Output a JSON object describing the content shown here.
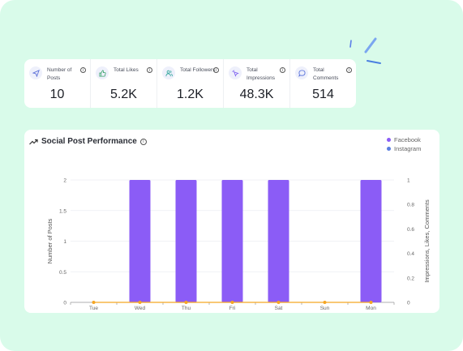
{
  "stats": [
    {
      "label": "Number of Posts",
      "value": "10",
      "icon": "send-icon"
    },
    {
      "label": "Total Likes",
      "value": "5.2K",
      "icon": "thumbs-up-icon"
    },
    {
      "label": "Total Followers",
      "value": "1.2K",
      "icon": "users-icon"
    },
    {
      "label": "Total Impressions",
      "value": "48.3K",
      "icon": "pointer-click-icon"
    },
    {
      "label": "Total Comments",
      "value": "514",
      "icon": "chat-bubble-icon"
    }
  ],
  "card": {
    "title": "Social Post Performance",
    "title_icon": "trending-up-icon",
    "info_glyph": "i"
  },
  "stat_info_glyph": "i",
  "chart_data": {
    "type": "bar",
    "categories": [
      "Tue",
      "Wed",
      "Thu",
      "Fri",
      "Sat",
      "Sun",
      "Mon"
    ],
    "series": [
      {
        "name": "Facebook",
        "type": "bar",
        "axis": "left",
        "color": "#8b5cf6",
        "values": [
          0,
          2,
          2,
          2,
          2,
          0,
          2
        ]
      },
      {
        "name": "Instagram",
        "type": "line",
        "axis": "right",
        "color": "#f5a623",
        "values": [
          0,
          0,
          0,
          0,
          0,
          0,
          0
        ]
      }
    ],
    "legend": [
      {
        "name": "Facebook",
        "color": "#8b5cf6"
      },
      {
        "name": "Instagram",
        "color": "#5b7fe0"
      }
    ],
    "ylabel": "Number of Posts",
    "y2label": "Impressions, Likes, Comments",
    "ylim": [
      0,
      2
    ],
    "y2lim": [
      0,
      1
    ],
    "yticks": [
      "0",
      "0.5",
      "1",
      "1.5",
      "2"
    ],
    "y2ticks": [
      "0",
      "0.2",
      "0.4",
      "0.6",
      "0.8",
      "1"
    ],
    "grid": true,
    "legend_position": "top-right"
  }
}
